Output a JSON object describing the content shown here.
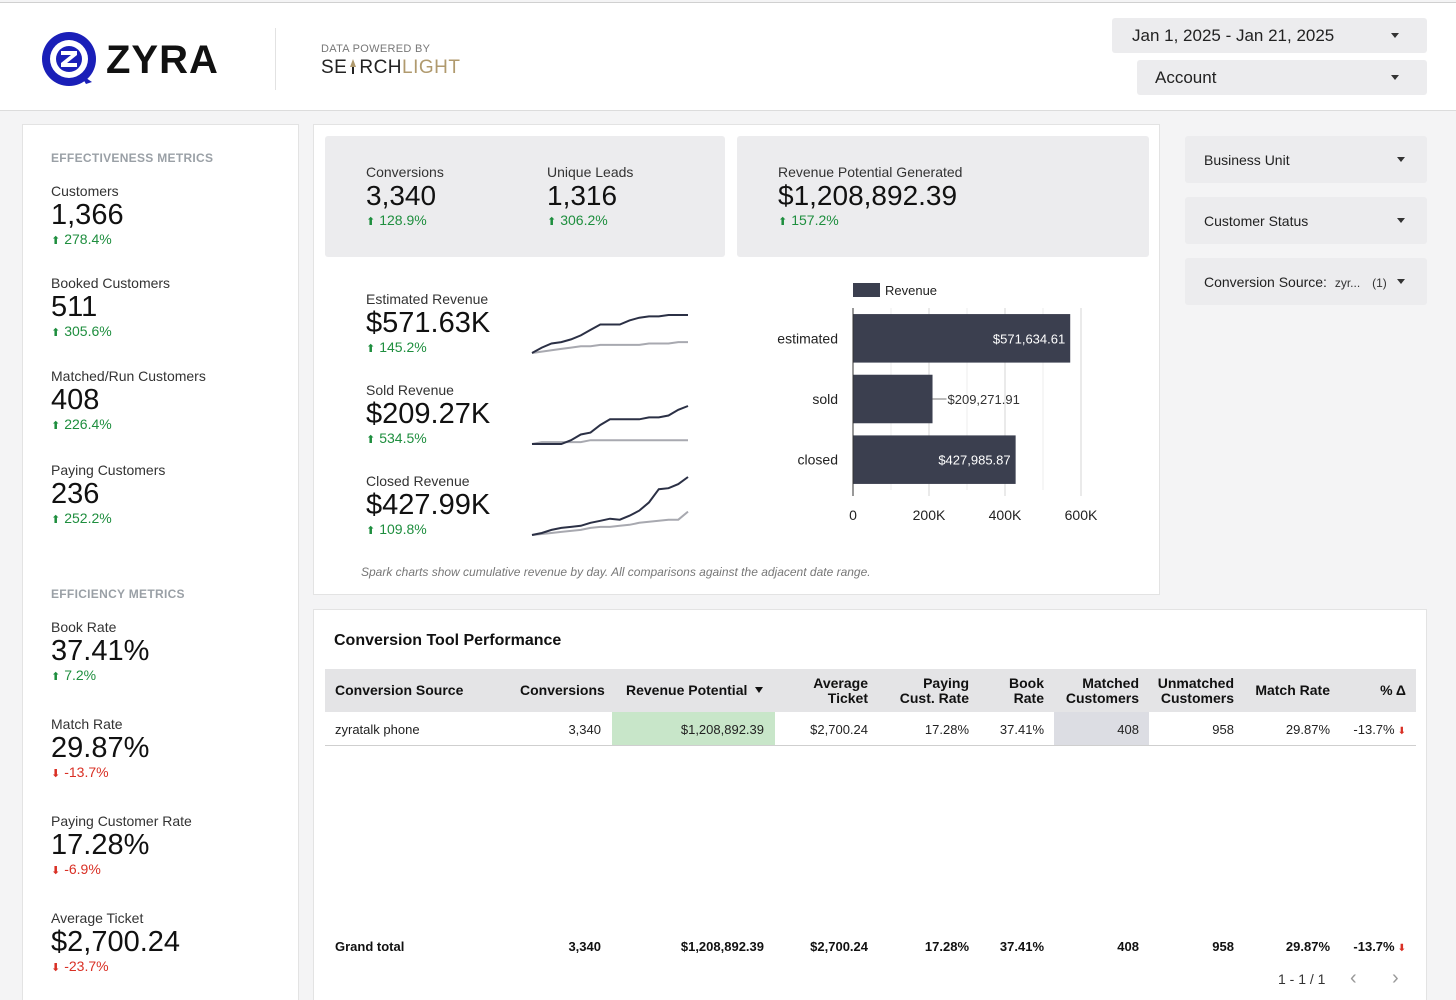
{
  "header": {
    "logo_text": "ZYRA",
    "powered_label": "DATA POWERED BY",
    "powered_brand_dark_a": "SE",
    "powered_brand_dark_b": "RCH",
    "powered_brand_gold": "LIGHT",
    "date_range": "Jan 1, 2025 - Jan 21, 2025",
    "account": "Account"
  },
  "effectiveness": {
    "title": "EFFECTIVENESS METRICS",
    "metrics": [
      {
        "label": "Customers",
        "value": "1,366",
        "delta": "278.4%",
        "dir": "up"
      },
      {
        "label": "Booked Customers",
        "value": "511",
        "delta": "305.6%",
        "dir": "up"
      },
      {
        "label": "Matched/Run Customers",
        "value": "408",
        "delta": "226.4%",
        "dir": "up"
      },
      {
        "label": "Paying Customers",
        "value": "236",
        "delta": "252.2%",
        "dir": "up"
      }
    ]
  },
  "efficiency": {
    "title": "EFFICIENCY METRICS",
    "metrics": [
      {
        "label": "Book Rate",
        "value": "37.41%",
        "delta": "7.2%",
        "dir": "up"
      },
      {
        "label": "Match Rate",
        "value": "29.87%",
        "delta": "-13.7%",
        "dir": "down"
      },
      {
        "label": "Paying Customer Rate",
        "value": "17.28%",
        "delta": "-6.9%",
        "dir": "down"
      },
      {
        "label": "Average Ticket",
        "value": "$2,700.24",
        "delta": "-23.7%",
        "dir": "down"
      }
    ]
  },
  "kpis": {
    "conversions": {
      "label": "Conversions",
      "value": "3,340",
      "delta": "128.9%"
    },
    "unique_leads": {
      "label": "Unique Leads",
      "value": "1,316",
      "delta": "306.2%"
    },
    "revenue_potential": {
      "label": "Revenue Potential Generated",
      "value": "$1,208,892.39",
      "delta": "157.2%"
    }
  },
  "sparks": [
    {
      "label": "Estimated Revenue",
      "value": "$571.63K",
      "delta": "145.2%",
      "current": [
        0,
        4,
        7,
        8,
        10,
        13,
        17,
        21,
        21,
        21,
        24,
        26,
        27,
        27,
        28,
        28,
        28
      ],
      "previous": [
        0,
        1,
        2,
        3,
        4,
        5,
        5,
        6,
        6,
        6,
        6,
        6,
        7,
        7,
        7,
        8,
        8
      ]
    },
    {
      "label": "Sold Revenue",
      "value": "$209.27K",
      "delta": "534.5%",
      "current": [
        0,
        0,
        0,
        0,
        2,
        5,
        6,
        10,
        13,
        13,
        13,
        13,
        14,
        14,
        15,
        18,
        20
      ],
      "previous": [
        0,
        1,
        1,
        1,
        1,
        1,
        2,
        2,
        2,
        2,
        2,
        2,
        2,
        2,
        2,
        2,
        2
      ]
    },
    {
      "label": "Closed Revenue",
      "value": "$427.99K",
      "delta": "109.8%",
      "current": [
        0,
        2,
        5,
        7,
        8,
        9,
        12,
        14,
        16,
        15,
        19,
        24,
        32,
        45,
        46,
        50,
        57
      ],
      "previous": [
        0,
        1,
        2,
        3,
        4,
        5,
        7,
        8,
        8,
        9,
        10,
        12,
        13,
        14,
        15,
        15,
        23
      ]
    }
  ],
  "chart_data": {
    "type": "bar",
    "orientation": "horizontal",
    "categories": [
      "estimated",
      "sold",
      "closed"
    ],
    "series": [
      {
        "name": "Revenue",
        "values": [
          571634.61,
          209271.91,
          427985.87
        ]
      }
    ],
    "value_labels": [
      "$571,634.61",
      "$209,271.91",
      "$427,985.87"
    ],
    "xlim": [
      0,
      600000
    ],
    "ticks": [
      0,
      200000,
      400000,
      600000
    ],
    "tick_labels": [
      "0",
      "200K",
      "400K",
      "600K"
    ],
    "grid": true,
    "legend": "top",
    "bar_color": "#3b3f4f"
  },
  "footnote": "Spark charts show cumulative revenue by day. All comparisons against the adjacent date range.",
  "filters": {
    "business_unit": "Business Unit",
    "customer_status": "Customer Status",
    "conversion_source_label": "Conversion Source:",
    "conversion_source_value": "zyr...",
    "conversion_source_count": "(1)"
  },
  "table": {
    "title": "Conversion Tool Performance",
    "headers": {
      "source": "Conversion Source",
      "conversions": "Conversions",
      "revenue_potential": "Revenue Potential",
      "avg_ticket_a": "Average",
      "avg_ticket_b": "Ticket",
      "paying_a": "Paying",
      "paying_b": "Cust. Rate",
      "book_a": "Book",
      "book_b": "Rate",
      "matched_a": "Matched",
      "matched_b": "Customers",
      "unmatched_a": "Unmatched",
      "unmatched_b": "Customers",
      "match_rate": "Match Rate",
      "pct_delta": "% Δ"
    },
    "row": {
      "source": "zyratalk phone",
      "conversions": "3,340",
      "revenue_potential": "$1,208,892.39",
      "avg_ticket": "$2,700.24",
      "paying_rate": "17.28%",
      "book_rate": "37.41%",
      "matched": "408",
      "unmatched": "958",
      "match_rate": "29.87%",
      "pct_delta": "-13.7%"
    },
    "total": {
      "label": "Grand total",
      "conversions": "3,340",
      "revenue_potential": "$1,208,892.39",
      "avg_ticket": "$2,700.24",
      "paying_rate": "17.28%",
      "book_rate": "37.41%",
      "matched": "408",
      "unmatched": "958",
      "match_rate": "29.87%",
      "pct_delta": "-13.7%"
    },
    "pager": "1 - 1 / 1",
    "colors": {
      "revenue_highlight": "#c8e6c9",
      "matched_highlight": "#dcdde3",
      "negative": "#d93025"
    }
  }
}
